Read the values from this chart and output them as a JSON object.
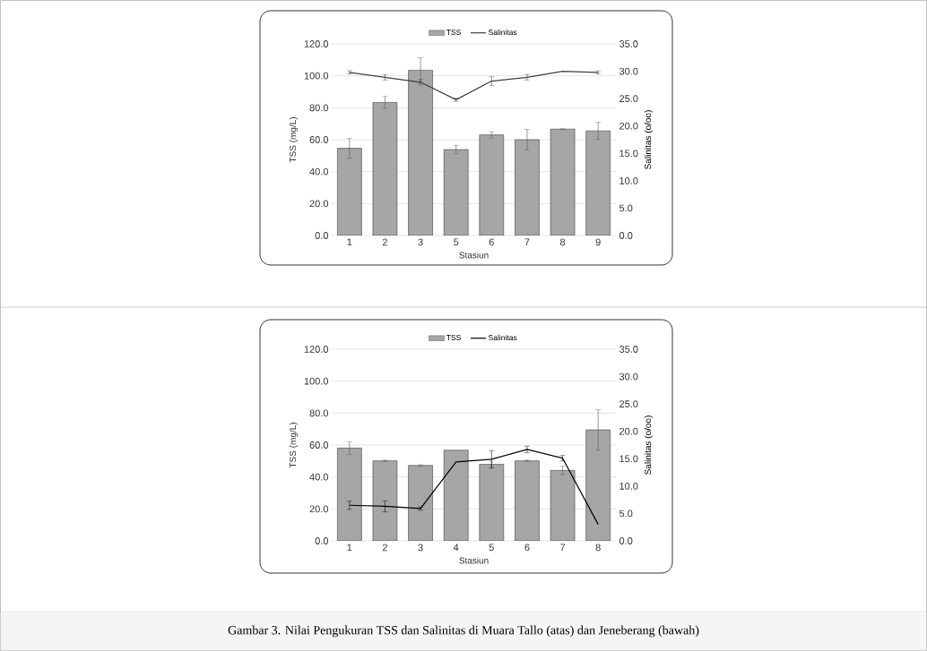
{
  "chart_data": [
    {
      "type": "bar",
      "xlabel": "Stasiun",
      "ylabel": "TSS (mg/L)",
      "y2label": "Salinitas  (o/oo)",
      "categories": [
        "1",
        "2",
        "3",
        "5",
        "6",
        "7",
        "8",
        "9"
      ],
      "series": [
        {
          "name": "TSS",
          "color": "#a6a6a6",
          "values": [
            54.6,
            83.3,
            103.5,
            53.8,
            63.0,
            60.0,
            66.6,
            65.5
          ],
          "errors": [
            6.2,
            3.8,
            7.8,
            2.6,
            2.0,
            6.5,
            0.3,
            5.4
          ]
        },
        {
          "name": "Salinitas",
          "type": "line",
          "axis": "y2",
          "color": "#404040",
          "values": [
            29.8,
            28.9,
            28.0,
            24.8,
            28.2,
            28.9,
            30.0,
            29.8
          ],
          "errors": [
            0.3,
            0.5,
            0.5,
            0.3,
            0.8,
            0.5,
            null,
            0.3
          ]
        }
      ],
      "ylim": [
        0,
        120
      ],
      "yticks": [
        {
          "value": 0,
          "label": "0.0"
        },
        {
          "value": 20,
          "label": "20.0"
        },
        {
          "value": 40,
          "label": "40.0"
        },
        {
          "value": 60,
          "label": "60.0"
        },
        {
          "value": 80,
          "label": "80.0"
        },
        {
          "value": 100,
          "label": "100.0"
        },
        {
          "value": 120,
          "label": "120.0"
        }
      ],
      "y2lim": [
        0,
        35
      ],
      "y2ticks": [
        {
          "value": 0,
          "label": "0.0"
        },
        {
          "value": 5,
          "label": "5.0"
        },
        {
          "value": 10,
          "label": "10.0"
        },
        {
          "value": 15,
          "label": "15.0"
        },
        {
          "value": 20,
          "label": "20.0"
        },
        {
          "value": 25,
          "label": "25.0"
        },
        {
          "value": 30,
          "label": "30.0"
        },
        {
          "value": 35,
          "label": "35.0"
        }
      ],
      "grid": "y",
      "legend": "top"
    },
    {
      "type": "bar",
      "xlabel": "Stasiun",
      "ylabel": "TSS (mg/L)",
      "y2label": "Salinitas  (o/oo)",
      "categories": [
        "1",
        "2",
        "3",
        "4",
        "5",
        "6",
        "7",
        "8"
      ],
      "series": [
        {
          "name": "TSS",
          "color": "#a6a6a6",
          "values": [
            58.1,
            50.1,
            47.2,
            56.8,
            47.9,
            50.1,
            44.1,
            69.5
          ],
          "errors": [
            4.0,
            0.5,
            0.5,
            null,
            2.0,
            0.5,
            2.7,
            12.7
          ]
        },
        {
          "name": "Salinitas",
          "type": "line",
          "axis": "y2",
          "color": "#000000",
          "values": [
            6.5,
            6.3,
            5.9,
            14.4,
            14.9,
            16.7,
            15.1,
            3.0
          ],
          "errors": [
            0.75,
            1.0,
            0.3,
            null,
            1.6,
            0.6,
            0.5,
            null
          ]
        }
      ],
      "ylim": [
        0,
        120
      ],
      "yticks": [
        {
          "value": 0,
          "label": "0.0"
        },
        {
          "value": 20,
          "label": "20.0"
        },
        {
          "value": 40,
          "label": "40.0"
        },
        {
          "value": 60,
          "label": "60.0"
        },
        {
          "value": 80,
          "label": "80.0"
        },
        {
          "value": 100,
          "label": "100.0"
        },
        {
          "value": 120,
          "label": "120.0"
        }
      ],
      "y2lim": [
        0,
        35
      ],
      "y2ticks": [
        {
          "value": 0,
          "label": "0.0"
        },
        {
          "value": 5,
          "label": "5.0"
        },
        {
          "value": 10,
          "label": "10.0"
        },
        {
          "value": 15,
          "label": "15.0"
        },
        {
          "value": 20,
          "label": "20.0"
        },
        {
          "value": 25,
          "label": "25.0"
        },
        {
          "value": 30,
          "label": "30.0"
        },
        {
          "value": 35,
          "label": "35.0"
        }
      ],
      "grid": "y",
      "legend": "top",
      "annotations": [
        "Gambar 3. Nilai Pengukuran TSS dan Salinitas di Muara Tallo (atas) dan Jeneberang (bawah)"
      ]
    }
  ]
}
